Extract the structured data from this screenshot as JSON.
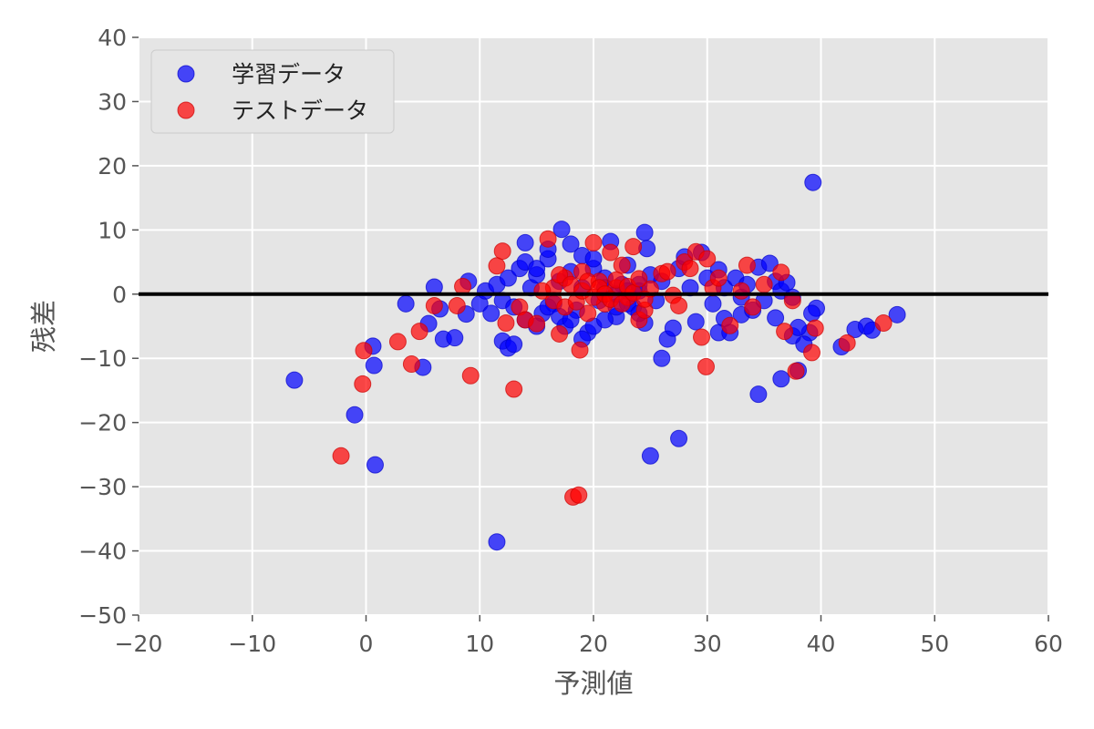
{
  "chart_data": {
    "type": "scatter",
    "title": "",
    "xlabel": "予測値",
    "ylabel": "残差",
    "xlim": [
      -20,
      60
    ],
    "ylim": [
      -50,
      40
    ],
    "xticks": [
      -20,
      -10,
      0,
      10,
      20,
      30,
      40,
      50,
      60
    ],
    "yticks": [
      -50,
      -40,
      -30,
      -20,
      -10,
      0,
      10,
      20,
      30,
      40
    ],
    "xtick_labels": [
      "−20",
      "−10",
      "0",
      "10",
      "20",
      "30",
      "40",
      "50",
      "60"
    ],
    "ytick_labels": [
      "−50",
      "−40",
      "−30",
      "−20",
      "−10",
      "0",
      "10",
      "20",
      "30",
      "40"
    ],
    "grid": true,
    "style": "ggplot",
    "background": "#e5e5e5",
    "hline": {
      "y": 0,
      "color": "#000000",
      "xmin": -20,
      "xmax": 60
    },
    "legend": {
      "position": "upper left",
      "entries": [
        "学習データ",
        "テストデータ"
      ]
    },
    "series": [
      {
        "name": "学習データ",
        "color": "#0000ff",
        "alpha": 0.7,
        "points": [
          [
            -6.3,
            -13.4
          ],
          [
            -1,
            -18.8
          ],
          [
            0.8,
            -26.6
          ],
          [
            0.6,
            -8.1
          ],
          [
            0.7,
            -11.1
          ],
          [
            3.5,
            -1.5
          ],
          [
            5,
            -11.4
          ],
          [
            5.5,
            -4.6
          ],
          [
            6,
            1.1
          ],
          [
            6.5,
            -2.3
          ],
          [
            6.8,
            -7
          ],
          [
            7.8,
            -6.8
          ],
          [
            9,
            2
          ],
          [
            8.8,
            -3.1
          ],
          [
            11.5,
            -38.6
          ],
          [
            12,
            -7.3
          ],
          [
            12.5,
            -8.4
          ],
          [
            13,
            -7.8
          ],
          [
            14,
            8
          ],
          [
            17.2,
            10.1
          ],
          [
            24.5,
            9.6
          ],
          [
            24.7,
            7.1
          ],
          [
            25,
            -25.2
          ],
          [
            27.5,
            -22.5
          ],
          [
            26,
            -10
          ],
          [
            34.5,
            -15.6
          ],
          [
            36.5,
            -13.2
          ],
          [
            38,
            -11.9
          ],
          [
            39.3,
            17.4
          ],
          [
            41.8,
            -8.2
          ],
          [
            43,
            -5.5
          ],
          [
            44,
            -5
          ],
          [
            44.5,
            -5.6
          ],
          [
            46.7,
            -3.2
          ],
          [
            39.6,
            -2.2
          ],
          [
            39.2,
            -3
          ],
          [
            39,
            -6
          ],
          [
            38.5,
            -7.8
          ],
          [
            37.5,
            -6.5
          ],
          [
            38,
            -5.2
          ],
          [
            36,
            -3.7
          ],
          [
            33,
            -3.2
          ],
          [
            31.5,
            -3.8
          ],
          [
            31,
            -6
          ],
          [
            10,
            -1.5
          ],
          [
            10.5,
            0.5
          ],
          [
            11,
            -3
          ],
          [
            11.5,
            1.5
          ],
          [
            12,
            -1
          ],
          [
            12.5,
            2.5
          ],
          [
            13,
            -2
          ],
          [
            13.5,
            4
          ],
          [
            14,
            -4
          ],
          [
            14.5,
            1
          ],
          [
            15,
            3
          ],
          [
            15.5,
            -3
          ],
          [
            16,
            5.5
          ],
          [
            16.5,
            -1.5
          ],
          [
            17,
            2
          ],
          [
            17.5,
            -5
          ],
          [
            18,
            3.5
          ],
          [
            18.5,
            -2.5
          ],
          [
            19,
            1
          ],
          [
            19.5,
            -6
          ],
          [
            20,
            4
          ],
          [
            20.5,
            -1
          ],
          [
            21,
            2.5
          ],
          [
            21.5,
            8.2
          ],
          [
            22,
            -3.5
          ],
          [
            22.5,
            1.5
          ],
          [
            23,
            4.5
          ],
          [
            23.5,
            -2
          ],
          [
            24,
            0.5
          ],
          [
            24.5,
            -4.5
          ],
          [
            25,
            3
          ],
          [
            25.5,
            -1
          ],
          [
            26,
            2
          ],
          [
            26.5,
            -7
          ],
          [
            27,
            -5.3
          ],
          [
            27.5,
            4
          ],
          [
            28,
            5.8
          ],
          [
            28.5,
            1
          ],
          [
            29,
            -4.3
          ],
          [
            29.5,
            6.5
          ],
          [
            30,
            2.5
          ],
          [
            30.5,
            -1.5
          ],
          [
            31,
            3.8
          ],
          [
            31.5,
            1
          ],
          [
            32,
            -6
          ],
          [
            32.5,
            2.5
          ],
          [
            33,
            -0.5
          ],
          [
            33.5,
            1.5
          ],
          [
            34,
            -2.5
          ],
          [
            34.5,
            4.2
          ],
          [
            35,
            -1
          ],
          [
            35.5,
            4.8
          ],
          [
            36,
            2
          ],
          [
            36.5,
            0.5
          ],
          [
            37,
            1.8
          ],
          [
            37.5,
            -0.5
          ],
          [
            15,
            -5
          ],
          [
            16,
            -2
          ],
          [
            17,
            -3.5
          ],
          [
            18,
            -4
          ],
          [
            19,
            -7
          ],
          [
            20,
            -5
          ],
          [
            21,
            -4
          ],
          [
            22,
            -2
          ],
          [
            23,
            -1.5
          ],
          [
            24,
            -3
          ],
          [
            14,
            5
          ],
          [
            15,
            4
          ],
          [
            16,
            7
          ],
          [
            18,
            7.8
          ],
          [
            19,
            6
          ],
          [
            20,
            5.5
          ],
          [
            21,
            1
          ],
          [
            22,
            0
          ],
          [
            23,
            0.5
          ],
          [
            24,
            1.5
          ]
        ]
      },
      {
        "name": "テストデータ",
        "color": "#ff0000",
        "alpha": 0.7,
        "points": [
          [
            -2.2,
            -25.2
          ],
          [
            -0.2,
            -8.8
          ],
          [
            -0.3,
            -14
          ],
          [
            2.8,
            -7.4
          ],
          [
            4,
            -10.9
          ],
          [
            4.7,
            -5.8
          ],
          [
            6,
            -1.8
          ],
          [
            8,
            -1.8
          ],
          [
            8.5,
            1.2
          ],
          [
            9.2,
            -12.7
          ],
          [
            11.5,
            4.4
          ],
          [
            12,
            6.7
          ],
          [
            12.3,
            -4.5
          ],
          [
            13,
            -14.8
          ],
          [
            13.5,
            -2
          ],
          [
            14,
            -4
          ],
          [
            15,
            -4.6
          ],
          [
            16,
            8.6
          ],
          [
            16.5,
            1
          ],
          [
            17,
            -6.2
          ],
          [
            17.5,
            2.5
          ],
          [
            18.2,
            -31.6
          ],
          [
            18.7,
            -31.3
          ],
          [
            18.8,
            -8.7
          ],
          [
            19,
            3.5
          ],
          [
            19.5,
            -3
          ],
          [
            20,
            8
          ],
          [
            20.5,
            2
          ],
          [
            21,
            -1.5
          ],
          [
            21.5,
            6.5
          ],
          [
            22,
            1
          ],
          [
            22.5,
            4.5
          ],
          [
            23,
            -0.5
          ],
          [
            23.5,
            7.4
          ],
          [
            24,
            -4
          ],
          [
            24.5,
            -2.5
          ],
          [
            25,
            0.8
          ],
          [
            26,
            3.2
          ],
          [
            27,
            -0.2
          ],
          [
            28,
            5
          ],
          [
            29,
            6.6
          ],
          [
            29.5,
            -6.7
          ],
          [
            29.9,
            -11.3
          ],
          [
            30,
            5.5
          ],
          [
            30.5,
            1
          ],
          [
            31,
            2.5
          ],
          [
            32,
            -4.9
          ],
          [
            33,
            0.5
          ],
          [
            33.5,
            4.5
          ],
          [
            34,
            -2
          ],
          [
            35,
            1.5
          ],
          [
            36.5,
            3.4
          ],
          [
            36.8,
            -5.8
          ],
          [
            37.5,
            -1
          ],
          [
            37.8,
            -12
          ],
          [
            39.2,
            -9.1
          ],
          [
            39.5,
            -5.3
          ],
          [
            42.3,
            -7.6
          ],
          [
            45.5,
            -4.5
          ],
          [
            15.5,
            0.5
          ],
          [
            16.5,
            -1
          ],
          [
            17,
            3
          ],
          [
            17.5,
            -2
          ],
          [
            18,
            1.5
          ],
          [
            18.5,
            -1.2
          ],
          [
            19,
            0.5
          ],
          [
            19.5,
            2
          ],
          [
            20,
            -0.5
          ],
          [
            20.5,
            1
          ],
          [
            21,
            0
          ],
          [
            21.5,
            -0.8
          ],
          [
            22,
            2.2
          ],
          [
            22.5,
            -1.5
          ],
          [
            23,
            1.2
          ],
          [
            23.5,
            0.2
          ],
          [
            24,
            2.4
          ],
          [
            24.5,
            -0.8
          ],
          [
            26.5,
            3.5
          ],
          [
            27.5,
            -1.8
          ],
          [
            28.5,
            4
          ]
        ]
      }
    ]
  }
}
